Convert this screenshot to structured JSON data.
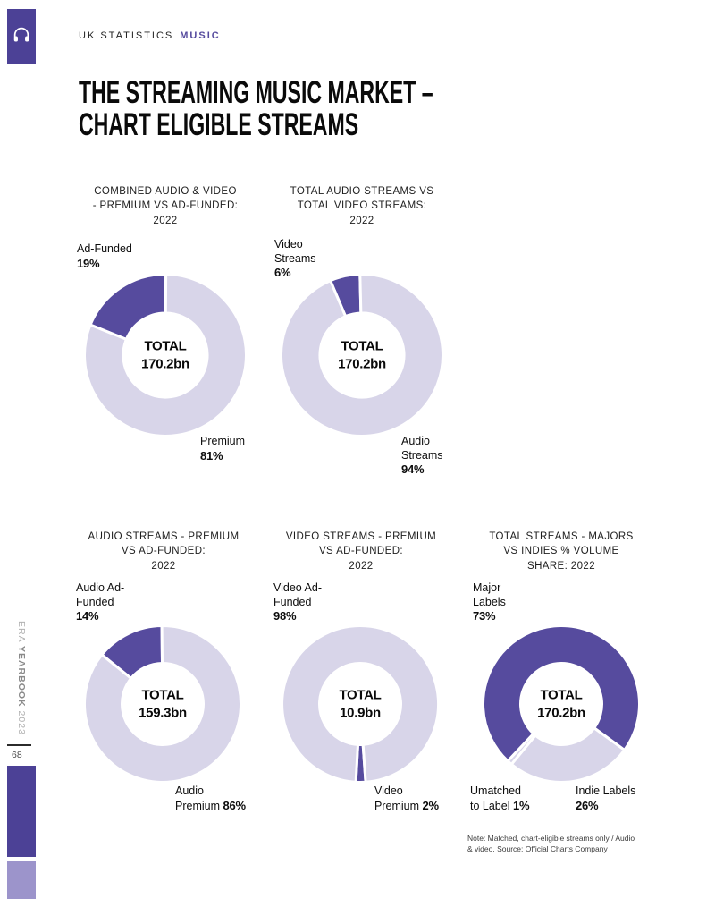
{
  "colors": {
    "dark": "#564B9E",
    "light": "#D8D5E9",
    "sidebar": "#4C4196",
    "sidebar_light": "#9C94CB"
  },
  "sidebar": {
    "era": "ERA",
    "yearbook": "YEARBOOK",
    "year": "2023",
    "page_number": "68"
  },
  "header": {
    "section": "UK STATISTICS",
    "category": "MUSIC"
  },
  "title": {
    "line1": "THE STREAMING MUSIC MARKET –",
    "line2": "CHART ELIGIBLE STREAMS"
  },
  "note": {
    "line1": "Note: Matched, chart-eligible streams only / Audio",
    "line2": "& video. Source: Official Charts Company"
  },
  "chart_data": [
    {
      "type": "donut",
      "title_lines": [
        "COMBINED AUDIO & VIDEO",
        "- PREMIUM VS AD-FUNDED:",
        "2022"
      ],
      "center": {
        "label": "TOTAL",
        "value": "170.2bn"
      },
      "rotation": -158,
      "segments": [
        {
          "name": "Ad-Funded",
          "pct": 19,
          "color": "dark"
        },
        {
          "name": "Premium",
          "pct": 81,
          "color": "light"
        }
      ],
      "labels": [
        {
          "lines": [
            "Ad-Funded"
          ],
          "tail": "",
          "value": "19%"
        },
        {
          "lines": [
            "Premium"
          ],
          "tail": "",
          "value": "81%"
        }
      ]
    },
    {
      "type": "donut",
      "title_lines": [
        "TOTAL AUDIO STREAMS VS",
        "TOTAL VIDEO STREAMS:",
        "2022"
      ],
      "center": {
        "label": "TOTAL",
        "value": "170.2bn"
      },
      "rotation": -113,
      "segments": [
        {
          "name": "Video Streams",
          "pct": 6,
          "color": "dark"
        },
        {
          "name": "Audio Streams",
          "pct": 94,
          "color": "light"
        }
      ],
      "labels": [
        {
          "lines": [
            "Video",
            "Streams"
          ],
          "tail": "",
          "value": "6%"
        },
        {
          "lines": [
            "Audio",
            "Streams"
          ],
          "tail": "",
          "value": "94%"
        }
      ]
    },
    {
      "type": "donut",
      "title_lines": [
        "AUDIO STREAMS - PREMIUM",
        "VS AD-FUNDED:",
        "2022"
      ],
      "center": {
        "label": "TOTAL",
        "value": "159.3bn"
      },
      "rotation": -141,
      "segments": [
        {
          "name": "Audio Ad-Funded",
          "pct": 14,
          "color": "dark"
        },
        {
          "name": "Audio Premium",
          "pct": 86,
          "color": "light"
        }
      ],
      "labels": [
        {
          "lines": [
            "Audio Ad-",
            "Funded"
          ],
          "tail": "",
          "value": "14%"
        },
        {
          "lines": [
            "Audio"
          ],
          "tail": "Premium ",
          "value": "86%"
        }
      ]
    },
    {
      "type": "donut",
      "title_lines": [
        "VIDEO STREAMS - PREMIUM",
        "VS AD-FUNDED:",
        "2022"
      ],
      "center": {
        "label": "TOTAL",
        "value": "10.9bn"
      },
      "rotation": 86,
      "segments": [
        {
          "name": "Video Premium",
          "pct": 2,
          "color": "dark"
        },
        {
          "name": "Video Ad-Funded",
          "pct": 98,
          "color": "light"
        }
      ],
      "labels": [
        {
          "lines": [
            "Video Ad-",
            "Funded"
          ],
          "tail": "",
          "value": "98%"
        },
        {
          "lines": [
            "Video"
          ],
          "tail": "Premium ",
          "value": "2%"
        }
      ]
    },
    {
      "type": "donut",
      "title_lines": [
        "TOTAL STREAMS - MAJORS",
        "VS INDIES % VOLUME",
        "SHARE: 2022"
      ],
      "center": {
        "label": "TOTAL",
        "value": "170.2bn"
      },
      "rotation": 36,
      "segments": [
        {
          "name": "Indie Labels",
          "pct": 26,
          "color": "light"
        },
        {
          "name": "Unmatched to Label",
          "pct": 1,
          "color": "light"
        },
        {
          "name": "Major Labels",
          "pct": 73,
          "color": "dark"
        }
      ],
      "labels": [
        {
          "lines": [
            "Major",
            "Labels"
          ],
          "tail": "",
          "value": "73%"
        },
        {
          "lines": [
            "Umatched"
          ],
          "tail": "to Label ",
          "value": "1%"
        },
        {
          "lines": [
            "Indie Labels"
          ],
          "tail": "",
          "value": "26%"
        }
      ]
    }
  ]
}
